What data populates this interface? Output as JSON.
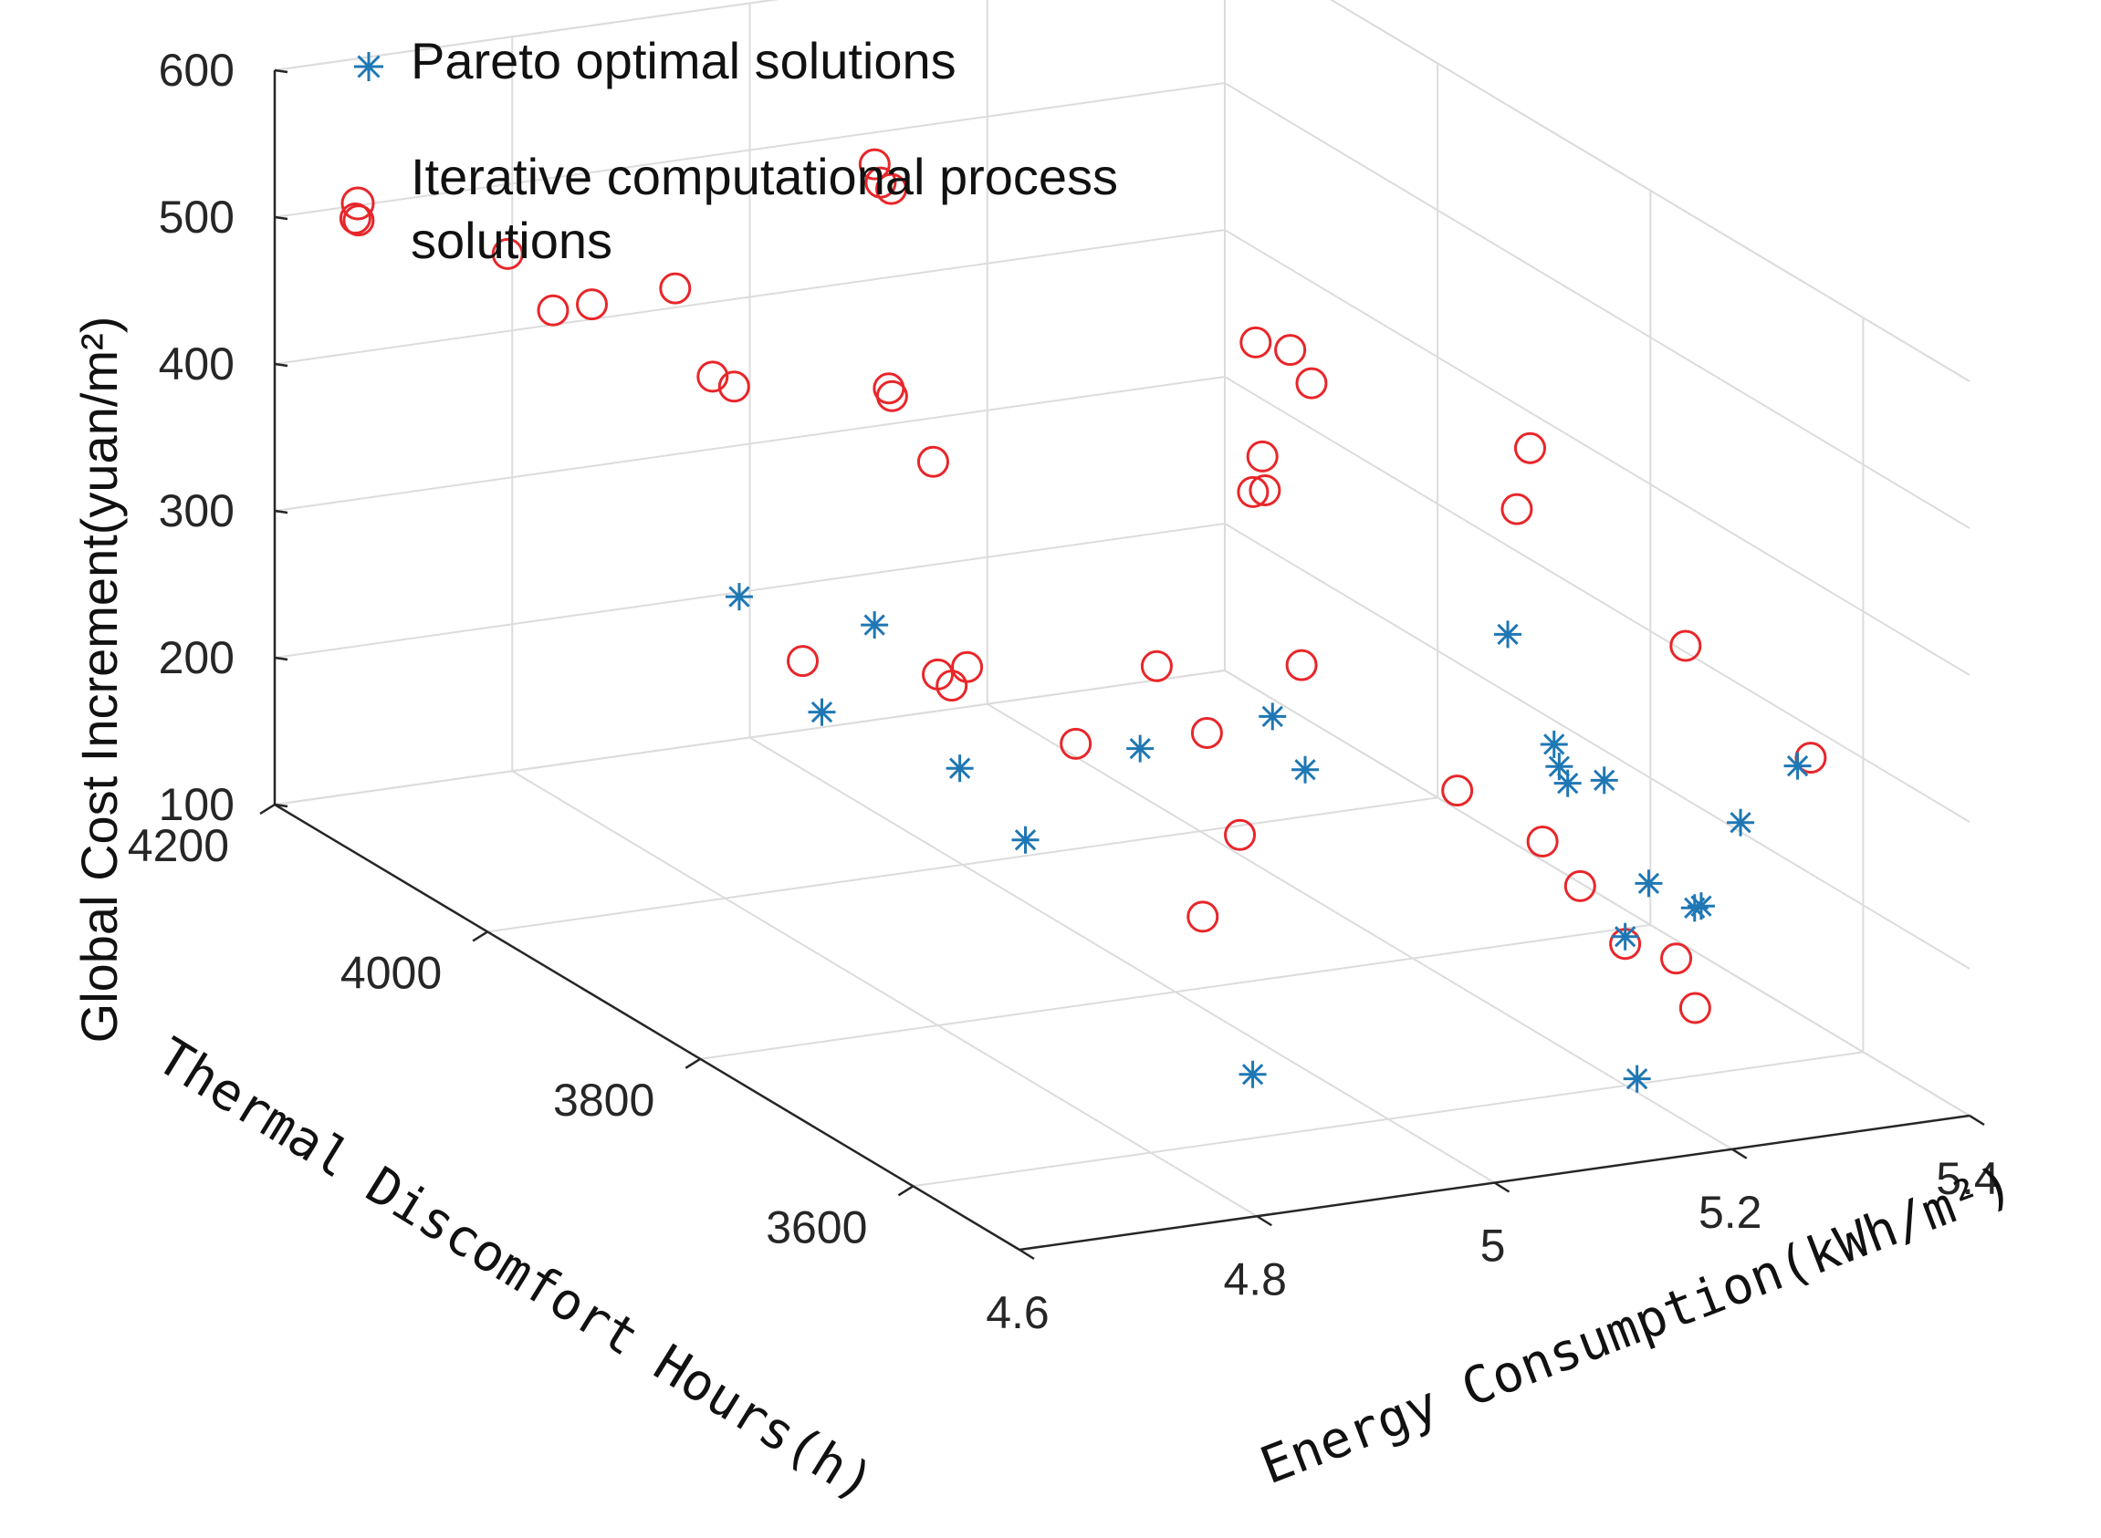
{
  "chart_data": {
    "type": "scatter3d",
    "title": "",
    "xlabel": "Energy Consumption(kWh/m²)",
    "ylabel": "Thermal Discomfort Hours(h)",
    "zlabel": "Global Cost Increment(yuan/m²)",
    "xlim": [
      4.6,
      5.4
    ],
    "ylim": [
      3500,
      4200
    ],
    "zlim": [
      100,
      600
    ],
    "xticks": [
      "4.6",
      "4.8",
      "5",
      "5.2",
      "5.4"
    ],
    "yticks": [
      "3600",
      "3800",
      "4000",
      "4200"
    ],
    "zticks": [
      "100",
      "200",
      "300",
      "400",
      "500",
      "600"
    ],
    "grid": true,
    "legend_position": "top-left",
    "colors": {
      "pareto": "#1f77b4",
      "iterative": "#e8262a"
    },
    "series": [
      {
        "name": "Pareto optimal solutions",
        "marker": "asterisk",
        "points": [
          [
            4.76,
            3942,
            335
          ],
          [
            4.78,
            3757,
            296
          ],
          [
            4.87,
            3688,
            329
          ],
          [
            4.82,
            3740,
            250
          ],
          [
            4.96,
            3664,
            351
          ],
          [
            4.94,
            3611,
            340
          ],
          [
            5.09,
            3588,
            425
          ],
          [
            5.12,
            3578,
            351
          ],
          [
            5.11,
            3562,
            344
          ],
          [
            5.11,
            3554,
            336
          ],
          [
            5.13,
            3542,
            341
          ],
          [
            5.11,
            3500,
            255
          ],
          [
            5.18,
            3556,
            259
          ],
          [
            5.19,
            3524,
            255
          ],
          [
            5.2,
            3529,
            253
          ],
          [
            5.26,
            3559,
            290
          ],
          [
            5.36,
            3617,
            292
          ],
          [
            4.86,
            3571,
            159
          ],
          [
            5.12,
            3500,
            157
          ],
          [
            4.74,
            3842,
            302
          ],
          [
            4.83,
            3893,
            329
          ]
        ]
      },
      {
        "name": "Iterative computational process solutions",
        "marker": "circle",
        "points": [
          [
            4.94,
            4010,
            567
          ],
          [
            4.94,
            4000,
            567
          ],
          [
            4.96,
            4038,
            565
          ],
          [
            5.03,
            3758,
            557
          ],
          [
            5.06,
            3759,
            548
          ],
          [
            5.06,
            3739,
            534
          ],
          [
            5.15,
            3634,
            525
          ],
          [
            5.12,
            3613,
            496
          ],
          [
            4.86,
            3913,
            478
          ],
          [
            4.86,
            3910,
            474
          ],
          [
            4.84,
            3849,
            458
          ],
          [
            4.99,
            3707,
            506
          ],
          [
            5.0,
            3727,
            472
          ],
          [
            5.01,
            3727,
            472
          ],
          [
            5.04,
            3726,
            350
          ],
          [
            4.83,
            3806,
            338
          ],
          [
            4.91,
            3717,
            368
          ],
          [
            4.92,
            3681,
            337
          ],
          [
            4.8,
            3800,
            339
          ],
          [
            4.8,
            3787,
            337
          ],
          [
            4.84,
            3715,
            324
          ],
          [
            4.92,
            3650,
            281
          ],
          [
            5.06,
            3602,
            316
          ],
          [
            5.07,
            3533,
            310
          ],
          [
            5.09,
            3520,
            283
          ],
          [
            5.11,
            3500,
            250
          ],
          [
            5.17,
            3519,
            225
          ],
          [
            5.16,
            3490,
            205
          ],
          [
            5.28,
            3633,
            376
          ],
          [
            5.38,
            3627,
            291
          ],
          [
            4.76,
            3967,
            474
          ],
          [
            4.77,
            3958,
            470
          ],
          [
            4.7,
            4050,
            490
          ],
          [
            4.73,
            4047,
            492
          ],
          [
            4.65,
            4180,
            502
          ],
          [
            4.65,
            4177,
            502
          ],
          [
            4.72,
            4115,
            498
          ],
          [
            4.81,
            4058,
            489
          ],
          [
            4.74,
            3860,
            329
          ],
          [
            4.86,
            3618,
            246
          ]
        ]
      }
    ]
  }
}
